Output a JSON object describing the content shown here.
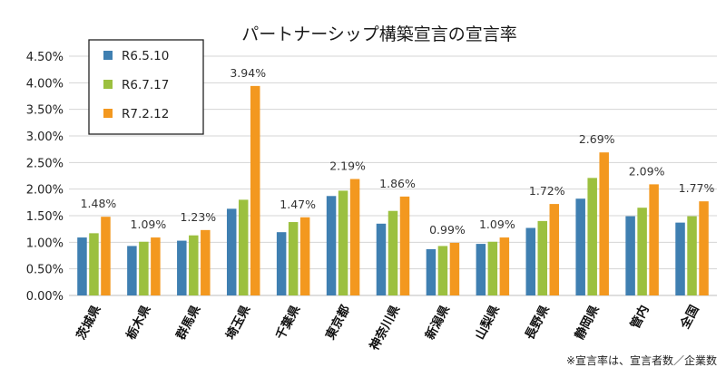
{
  "chart_data": {
    "type": "bar",
    "title": "パートナーシップ構築宣言の宣言率",
    "categories": [
      "茨城県",
      "栃木県",
      "群馬県",
      "埼玉県",
      "千葉県",
      "東京都",
      "神奈川県",
      "新潟県",
      "山梨県",
      "長野県",
      "静岡県",
      "管内",
      "全国"
    ],
    "series": [
      {
        "name": "R6.5.10",
        "color": "#3f7fb1",
        "values": [
          1.09,
          0.93,
          1.03,
          1.63,
          1.19,
          1.87,
          1.35,
          0.87,
          0.97,
          1.27,
          1.82,
          1.49,
          1.37
        ]
      },
      {
        "name": "R6.7.17",
        "color": "#9cc03f",
        "values": [
          1.17,
          1.01,
          1.13,
          1.8,
          1.38,
          1.97,
          1.59,
          0.93,
          1.01,
          1.4,
          2.21,
          1.65,
          1.49
        ]
      },
      {
        "name": "R7.2.12",
        "color": "#f3981f",
        "values": [
          1.48,
          1.09,
          1.23,
          3.94,
          1.47,
          2.19,
          1.86,
          0.99,
          1.09,
          1.72,
          2.69,
          2.09,
          1.77
        ]
      }
    ],
    "data_labels": [
      "1.48%",
      "1.09%",
      "1.23%",
      "3.94%",
      "1.47%",
      "2.19%",
      "1.86%",
      "0.99%",
      "1.09%",
      "1.72%",
      "2.69%",
      "2.09%",
      "1.77%"
    ],
    "y_ticks": [
      "0.00%",
      "0.50%",
      "1.00%",
      "1.50%",
      "2.00%",
      "2.50%",
      "3.00%",
      "3.50%",
      "4.00%",
      "4.50%"
    ],
    "ylim": [
      0,
      4.5
    ],
    "y_unit": "%",
    "grid": true,
    "legend_position": "top-left",
    "note": "※宣言率は、宣言者数／企業数"
  }
}
